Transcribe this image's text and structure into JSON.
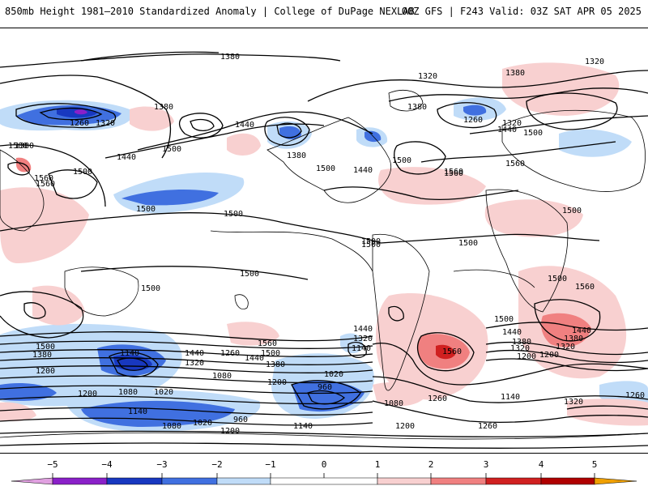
{
  "header": {
    "title": "850mb Height 1981–2010 Standardized Anomaly | College of DuPage NEXLAB",
    "run": "00Z GFS | F243 Valid: 03Z SAT APR 05 2025"
  },
  "colors": {
    "neg5": "#e0a0e0",
    "neg4": "#8a20c8",
    "neg3": "#1838c0",
    "neg2": "#4070e0",
    "neg1": "#c0dcf8",
    "pos1": "#f8d0d0",
    "pos2": "#f08080",
    "pos3": "#d02020",
    "pos4": "#b00000",
    "pos5": "#f0a000"
  },
  "colorbar": {
    "ticks": [
      "−5",
      "−4",
      "−3",
      "−2",
      "−1",
      "0",
      "1",
      "2",
      "3",
      "4",
      "5"
    ]
  },
  "contours": {
    "labels": [
      {
        "text": "1380"
      },
      {
        "text": "1320"
      },
      {
        "text": "1380"
      },
      {
        "text": "1320"
      },
      {
        "text": "1260"
      },
      {
        "text": "1320"
      },
      {
        "text": "1380"
      },
      {
        "text": "1440"
      },
      {
        "text": "1500"
      },
      {
        "text": "1500"
      },
      {
        "text": "1560"
      },
      {
        "text": "1500"
      },
      {
        "text": "1500"
      },
      {
        "text": "1500"
      },
      {
        "text": "1440"
      },
      {
        "text": "1380"
      },
      {
        "text": "1380"
      },
      {
        "text": "1440"
      },
      {
        "text": "1500"
      },
      {
        "text": "1380"
      },
      {
        "text": "1260"
      },
      {
        "text": "1320"
      },
      {
        "text": "1440"
      },
      {
        "text": "1500"
      },
      {
        "text": "1560"
      },
      {
        "text": "1560"
      },
      {
        "text": "1500"
      },
      {
        "text": "1500"
      },
      {
        "text": "1500"
      },
      {
        "text": "1500"
      },
      {
        "text": "1500"
      },
      {
        "text": "1500"
      },
      {
        "text": "1560"
      },
      {
        "text": "1440"
      },
      {
        "text": "1380"
      },
      {
        "text": "1320"
      },
      {
        "text": "1200"
      },
      {
        "text": "1500"
      },
      {
        "text": "1380"
      },
      {
        "text": "1200"
      },
      {
        "text": "1140"
      },
      {
        "text": "1080"
      },
      {
        "text": "1020"
      },
      {
        "text": "1440"
      },
      {
        "text": "1320"
      },
      {
        "text": "1260"
      },
      {
        "text": "1080"
      },
      {
        "text": "1560"
      },
      {
        "text": "1500"
      },
      {
        "text": "1380"
      },
      {
        "text": "1200"
      },
      {
        "text": "1440"
      },
      {
        "text": "1320"
      },
      {
        "text": "1140"
      },
      {
        "text": "1020"
      },
      {
        "text": "960"
      },
      {
        "text": "1200"
      },
      {
        "text": "1140"
      },
      {
        "text": "1080"
      },
      {
        "text": "1020"
      },
      {
        "text": "960"
      },
      {
        "text": "1200"
      },
      {
        "text": "1140"
      },
      {
        "text": "1080"
      },
      {
        "text": "1200"
      },
      {
        "text": "1260"
      },
      {
        "text": "1560"
      },
      {
        "text": "1260"
      },
      {
        "text": "1500"
      },
      {
        "text": "1440"
      },
      {
        "text": "1380"
      },
      {
        "text": "1320"
      },
      {
        "text": "1200"
      },
      {
        "text": "1140"
      },
      {
        "text": "1320"
      },
      {
        "text": "1260"
      },
      {
        "text": "1500"
      },
      {
        "text": "1560"
      },
      {
        "text": "1440"
      },
      {
        "text": "1500"
      },
      {
        "text": "1560"
      }
    ]
  }
}
